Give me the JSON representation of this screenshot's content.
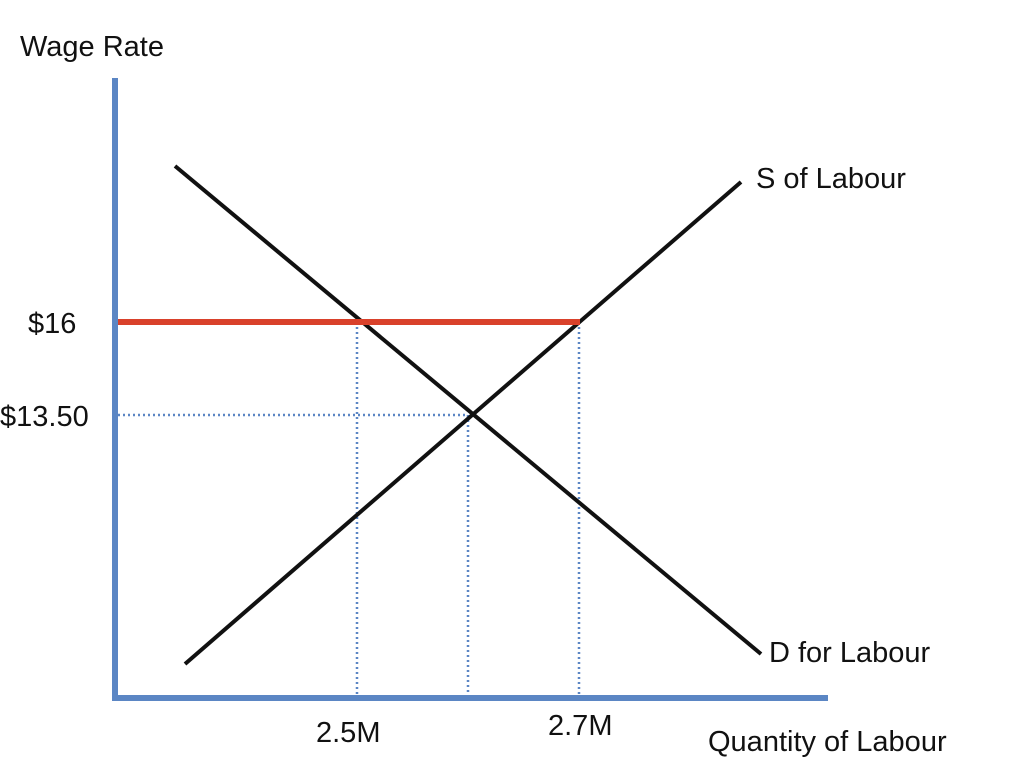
{
  "axes": {
    "y_label": "Wage Rate",
    "x_label": "Quantity of Labour",
    "color": "#5b86c4"
  },
  "curves": {
    "supply": {
      "label": "S of Labour",
      "color": "#111111"
    },
    "demand": {
      "label": "D for Labour",
      "color": "#111111"
    }
  },
  "price_floor": {
    "label": "$16",
    "color": "#d9412b"
  },
  "equilibrium": {
    "label": "$13.50"
  },
  "quantity_ticks": {
    "left": "2.5M",
    "right": "2.7M"
  },
  "guide_color": "#5b86c4"
}
